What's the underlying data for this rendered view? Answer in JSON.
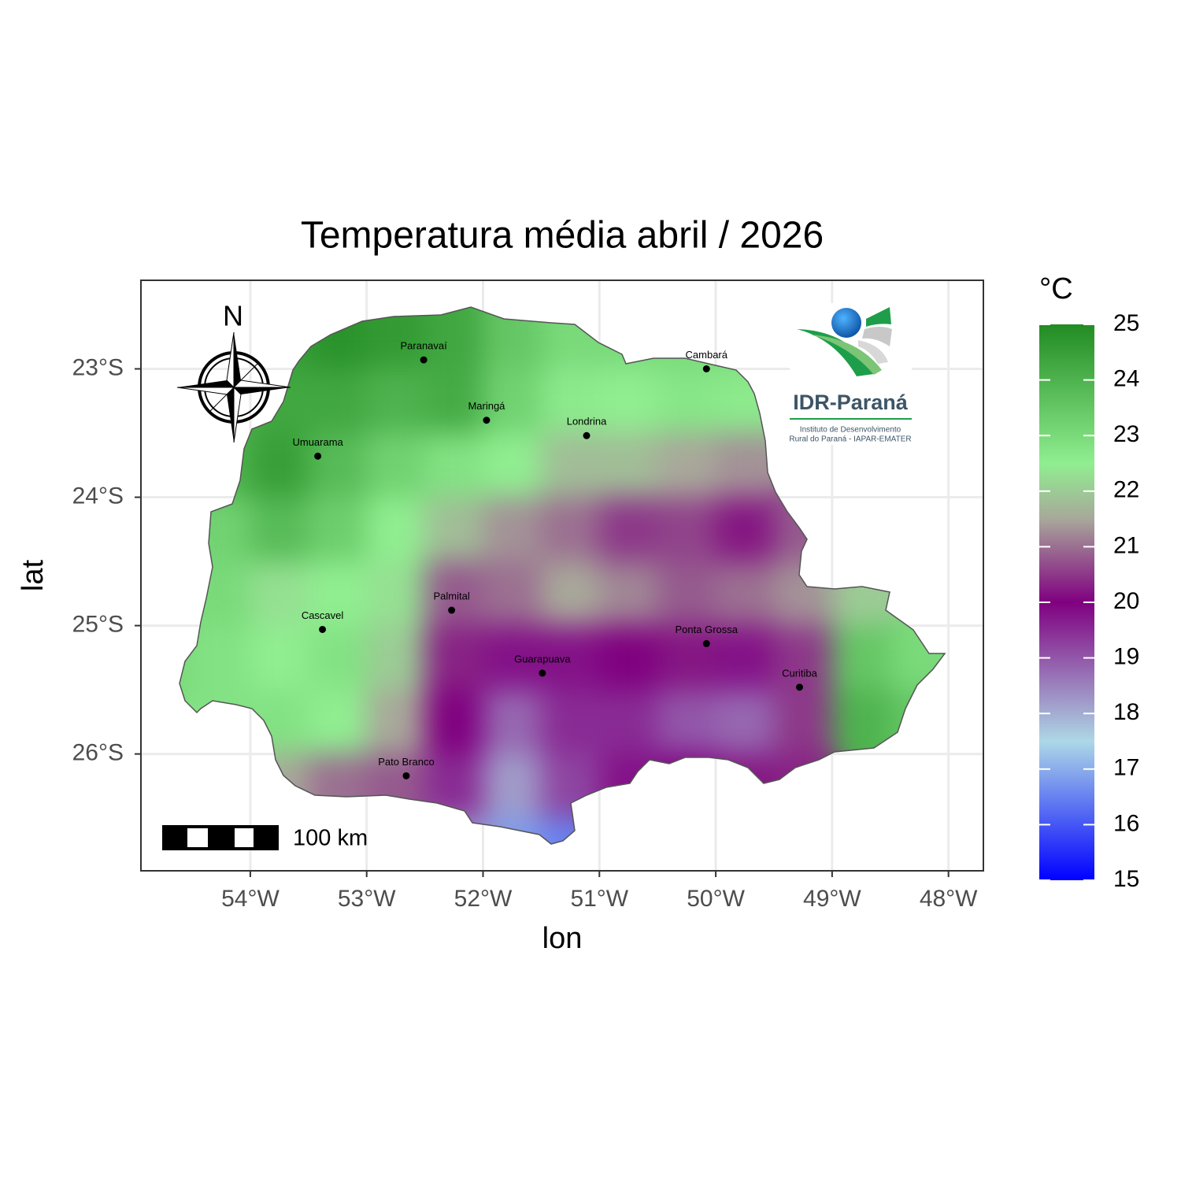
{
  "chart_data": {
    "type": "raster-map",
    "title": "Temperatura média abril / 2026",
    "x_label": "lon",
    "y_label": "lat",
    "xlim": [
      -54.94,
      -47.7
    ],
    "ylim": [
      -26.91,
      -22.31
    ],
    "xticks": [
      {
        "value": -54,
        "label": "54°W"
      },
      {
        "value": -53,
        "label": "53°W"
      },
      {
        "value": -52,
        "label": "52°W"
      },
      {
        "value": -51,
        "label": "51°W"
      },
      {
        "value": -50,
        "label": "50°W"
      },
      {
        "value": -49,
        "label": "49°W"
      },
      {
        "value": -48,
        "label": "48°W"
      }
    ],
    "yticks": [
      {
        "value": -23,
        "label": "23°S"
      },
      {
        "value": -24,
        "label": "24°S"
      },
      {
        "value": -25,
        "label": "25°S"
      },
      {
        "value": -26,
        "label": "26°S"
      }
    ],
    "grid": true,
    "lon": [
      -54.75,
      -54.25,
      -53.75,
      -53.25,
      -52.75,
      -52.25,
      -51.75,
      -51.25,
      -50.75,
      -50.25,
      -49.75,
      -49.25,
      -48.75,
      -48.25
    ],
    "lat": [
      -22.75,
      -23.25,
      -23.75,
      -24.25,
      -24.75,
      -25.25,
      -25.75,
      -26.25,
      -26.75
    ],
    "temperature": [
      [
        null,
        null,
        24.5,
        24.8,
        24.6,
        24.3,
        23.5,
        23,
        23,
        23,
        23,
        null,
        null,
        null
      ],
      [
        null,
        24,
        24.3,
        24.3,
        24,
        24.2,
        23.2,
        22.6,
        22.5,
        22.7,
        22.6,
        null,
        null,
        null
      ],
      [
        null,
        24,
        24.5,
        23.8,
        23.2,
        22.8,
        22.5,
        21.8,
        21.8,
        21.5,
        21.3,
        null,
        null,
        null
      ],
      [
        null,
        23.2,
        23.8,
        23.3,
        22.5,
        21.8,
        21.3,
        21,
        20.5,
        20.6,
        20.2,
        20.8,
        null,
        null
      ],
      [
        null,
        23,
        22.3,
        22.5,
        22.3,
        20.8,
        21,
        21.5,
        21.2,
        20.8,
        21,
        21.3,
        22,
        null
      ],
      [
        23,
        22.8,
        22.5,
        22.8,
        22,
        20.3,
        19.8,
        19.8,
        20,
        20.2,
        19.8,
        20.5,
        23.5,
        23
      ],
      [
        null,
        22.8,
        22.8,
        22.5,
        21.5,
        20,
        18.8,
        19.5,
        19.5,
        19,
        18.8,
        20.5,
        24,
        23.5
      ],
      [
        null,
        null,
        21.5,
        21,
        20.8,
        19.5,
        18.2,
        19.2,
        19.8,
        20,
        20.2,
        20.3,
        null,
        null
      ],
      [
        null,
        null,
        null,
        null,
        null,
        18.3,
        16.8,
        16.5,
        null,
        null,
        null,
        null,
        null,
        null
      ]
    ],
    "legend_title": "°C",
    "colorbar_lim": [
      15,
      25
    ],
    "colorbar_ticks": [
      15,
      16,
      17,
      18,
      19,
      20,
      21,
      22,
      23,
      24,
      25
    ],
    "colorscale": [
      {
        "value": 15,
        "color": "#0000ff"
      },
      {
        "value": 17.5,
        "color": "#add8e6"
      },
      {
        "value": 20,
        "color": "#800080"
      },
      {
        "value": 21.5,
        "color": "#a8a89a"
      },
      {
        "value": 22.5,
        "color": "#90ee90"
      },
      {
        "value": 25,
        "color": "#228b22"
      }
    ],
    "cities": {
      "names": [
        "Paranavaí",
        "Maringá",
        "Londrina",
        "Cambará",
        "Umuarama",
        "Cascavel",
        "Palmital",
        "Ponta Grossa",
        "Guarapuava",
        "Curitiba",
        "Pato Branco"
      ],
      "lon": [
        -52.51,
        -51.97,
        -51.11,
        -50.08,
        -53.42,
        -53.38,
        -52.27,
        -50.08,
        -51.49,
        -49.28,
        -52.66
      ],
      "lat": [
        -22.93,
        -23.4,
        -23.52,
        -23.0,
        -23.68,
        -25.03,
        -24.88,
        -25.14,
        -25.37,
        -25.48,
        -26.17
      ]
    },
    "north_label": "N",
    "scale_bar_label": "100 km"
  },
  "logo": {
    "name": "IDR-Paraná",
    "line1": "Instituto de Desenvolvimento",
    "line2": "Rural do Paraná - IAPAR-EMATER"
  }
}
